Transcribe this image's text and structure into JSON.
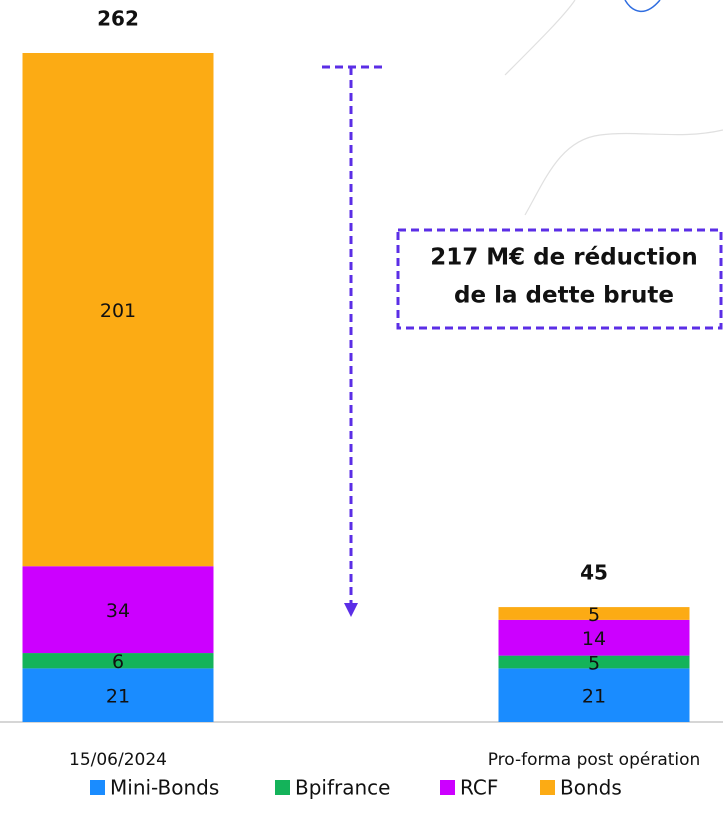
{
  "chart_data": {
    "type": "bar",
    "stacked": true,
    "categories": [
      "15/06/2024",
      "Pro-forma post opération"
    ],
    "series": [
      {
        "name": "Mini-Bonds",
        "color": "#1a8cff",
        "values": [
          21,
          21
        ]
      },
      {
        "name": "Bpifrance",
        "color": "#14b35a",
        "values": [
          6,
          5
        ]
      },
      {
        "name": "RCF",
        "color": "#cc00ff",
        "values": [
          34,
          14
        ]
      },
      {
        "name": "Bonds",
        "color": "#fcab14",
        "values": [
          201,
          5
        ]
      }
    ],
    "totals": [
      262,
      45
    ],
    "annotation": [
      "217 M€ de réduction",
      "de la dette brute"
    ],
    "legend": "bottom"
  }
}
